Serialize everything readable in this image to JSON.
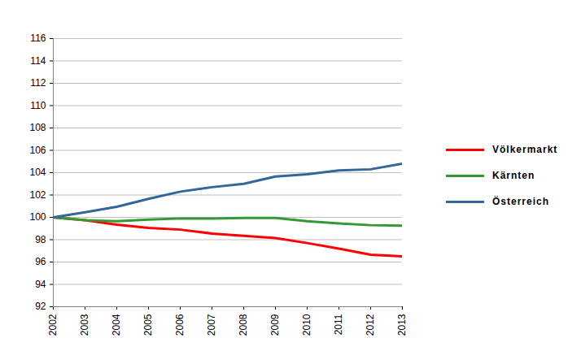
{
  "chart_data": {
    "type": "line",
    "x": [
      2002,
      2003,
      2004,
      2005,
      2006,
      2007,
      2008,
      2009,
      2010,
      2011,
      2012,
      2013
    ],
    "series": [
      {
        "name": "Völkermarkt",
        "color": "#ff0000",
        "values": [
          100,
          99.75,
          99.35,
          99.05,
          98.9,
          98.55,
          98.35,
          98.15,
          97.7,
          97.2,
          96.65,
          96.5
        ]
      },
      {
        "name": "Kärnten",
        "color": "#339933",
        "values": [
          100,
          99.75,
          99.65,
          99.8,
          99.9,
          99.9,
          99.95,
          99.95,
          99.65,
          99.45,
          99.3,
          99.25
        ]
      },
      {
        "name": "Österreich",
        "color": "#336699",
        "values": [
          100,
          100.45,
          100.95,
          101.65,
          102.3,
          102.7,
          103.0,
          103.65,
          103.85,
          104.2,
          104.3,
          104.8
        ]
      }
    ],
    "xlim": [
      2002,
      2013
    ],
    "xticks": [
      2002,
      2003,
      2004,
      2005,
      2006,
      2007,
      2008,
      2009,
      2010,
      2011,
      2012,
      2013
    ],
    "ylim": [
      92,
      116
    ],
    "yticks": [
      92,
      94,
      96,
      98,
      100,
      102,
      104,
      106,
      108,
      110,
      112,
      114,
      116
    ],
    "grid": true,
    "legend": "right"
  }
}
